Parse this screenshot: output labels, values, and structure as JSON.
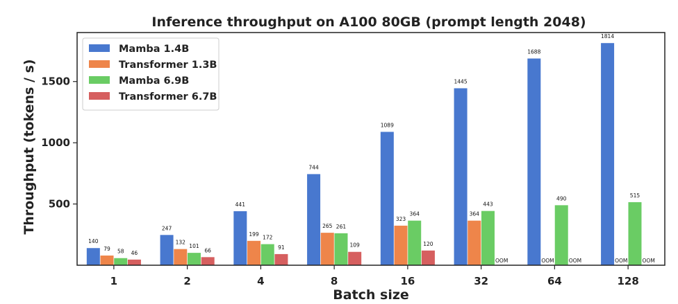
{
  "chart_data": {
    "type": "bar",
    "title": "Inference throughput on A100 80GB (prompt length 2048)",
    "xlabel": "Batch size",
    "ylabel": "Throughput (tokens / s)",
    "ylim": [
      0,
      1900
    ],
    "yticks": [
      500,
      1000,
      1500
    ],
    "categories": [
      "1",
      "2",
      "4",
      "8",
      "16",
      "32",
      "64",
      "128"
    ],
    "series": [
      {
        "name": "Mamba 1.4B",
        "color": "#4878cf",
        "values": [
          140,
          247,
          441,
          744,
          1089,
          1445,
          1688,
          1814
        ],
        "labels": [
          "140",
          "247",
          "441",
          "744",
          "1089",
          "1445",
          "1688",
          "1814"
        ]
      },
      {
        "name": "Transformer 1.3B",
        "color": "#ee854a",
        "values": [
          79,
          132,
          199,
          265,
          323,
          364,
          null,
          null
        ],
        "labels": [
          "79",
          "132",
          "199",
          "265",
          "323",
          "364",
          "OOM",
          "OOM"
        ]
      },
      {
        "name": "Mamba 6.9B",
        "color": "#6acc64",
        "values": [
          58,
          101,
          172,
          261,
          364,
          443,
          490,
          515
        ],
        "labels": [
          "58",
          "101",
          "172",
          "261",
          "364",
          "443",
          "490",
          "515"
        ]
      },
      {
        "name": "Transformer 6.7B",
        "color": "#d65f5f",
        "values": [
          46,
          66,
          91,
          109,
          120,
          null,
          null,
          null
        ],
        "labels": [
          "46",
          "66",
          "91",
          "109",
          "120",
          "OOM",
          "OOM",
          "OOM"
        ]
      }
    ],
    "legend_position": "top-left"
  }
}
